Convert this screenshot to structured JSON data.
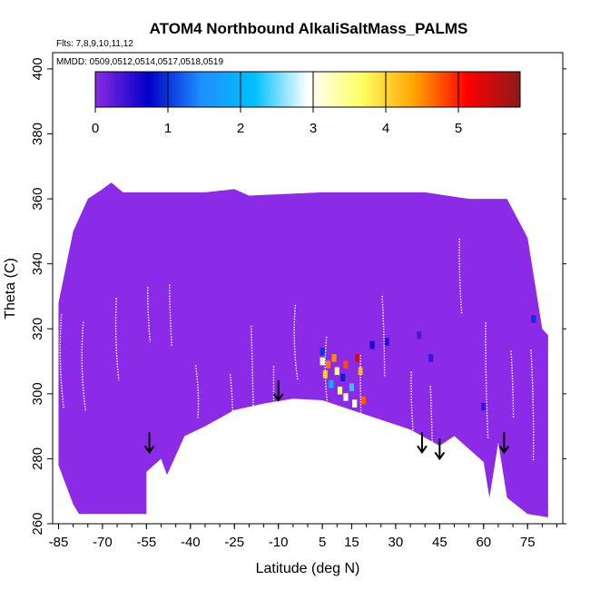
{
  "chart_data": {
    "type": "heatmap",
    "title": "ATOM4 Northbound AlkaliSaltMass_PALMS",
    "subtitle_flights": "Flts: 7,8,9,10,11,12",
    "subtitle_dates": "MMDD: 0509,0512,0514,0517,0518,0519",
    "xlabel": "Latitude (deg N)",
    "ylabel": "Theta (C)",
    "xlim": [
      -87,
      87
    ],
    "ylim": [
      260,
      405
    ],
    "xticks": [
      -85,
      -70,
      -55,
      -40,
      -25,
      -10,
      5,
      15,
      30,
      45,
      60,
      75
    ],
    "yticks": [
      260,
      280,
      300,
      320,
      340,
      360,
      380,
      400
    ],
    "colorbar": {
      "ticks": [
        0,
        1,
        2,
        3,
        4,
        5
      ],
      "range": [
        0,
        5.85
      ],
      "colors": [
        "#8a2be2",
        "#0000c8",
        "#1e90ff",
        "#00bfff",
        "#ffffff",
        "#ffff66",
        "#ffa500",
        "#ff0000",
        "#8b1a1a"
      ]
    },
    "background_value_color": "#8b2be7",
    "curtain_top": [
      [
        -85,
        328
      ],
      [
        -80,
        350
      ],
      [
        -75,
        360
      ],
      [
        -70,
        363
      ],
      [
        -67,
        365
      ],
      [
        -63,
        362
      ],
      [
        -45,
        362
      ],
      [
        -35,
        362
      ],
      [
        -25,
        363
      ],
      [
        -20,
        361
      ],
      [
        5,
        362
      ],
      [
        25,
        362
      ],
      [
        40,
        362
      ],
      [
        55,
        360
      ],
      [
        68,
        360
      ],
      [
        75,
        348
      ],
      [
        80,
        320
      ],
      [
        82,
        318
      ]
    ],
    "curtain_bottom": [
      [
        -85,
        278
      ],
      [
        -80,
        266
      ],
      [
        -78,
        263
      ],
      [
        -55,
        263
      ],
      [
        -55,
        276
      ],
      [
        -50,
        280
      ],
      [
        -48,
        275
      ],
      [
        -42,
        287
      ],
      [
        -35,
        290
      ],
      [
        -25,
        295
      ],
      [
        -15,
        297
      ],
      [
        -5,
        298.5
      ],
      [
        5,
        298
      ],
      [
        15,
        295
      ],
      [
        25,
        292
      ],
      [
        35,
        289
      ],
      [
        45,
        284
      ],
      [
        50,
        287
      ],
      [
        60,
        279
      ],
      [
        62,
        268
      ],
      [
        65,
        285
      ],
      [
        68,
        268
      ],
      [
        75,
        263
      ],
      [
        82,
        262
      ]
    ],
    "high_value_cells": [
      {
        "lat": 5,
        "theta": 313,
        "value": 1.0
      },
      {
        "lat": 5,
        "theta": 310,
        "value": 3.2
      },
      {
        "lat": 6,
        "theta": 306,
        "value": 4.2
      },
      {
        "lat": 7,
        "theta": 309,
        "value": 4.6
      },
      {
        "lat": 8,
        "theta": 303,
        "value": 2.0
      },
      {
        "lat": 9,
        "theta": 311,
        "value": 4.5
      },
      {
        "lat": 10,
        "theta": 307,
        "value": 3.6
      },
      {
        "lat": 11,
        "theta": 301,
        "value": 3.4
      },
      {
        "lat": 12,
        "theta": 305,
        "value": 0.9
      },
      {
        "lat": 13,
        "theta": 309,
        "value": 4.8
      },
      {
        "lat": 13,
        "theta": 299,
        "value": 3.0
      },
      {
        "lat": 15,
        "theta": 302,
        "value": 2.3
      },
      {
        "lat": 16,
        "theta": 297,
        "value": 3.1
      },
      {
        "lat": 17,
        "theta": 311,
        "value": 5.4
      },
      {
        "lat": 18,
        "theta": 307,
        "value": 4.4
      },
      {
        "lat": 19,
        "theta": 298,
        "value": 4.7
      },
      {
        "lat": 22,
        "theta": 315,
        "value": 0.6
      },
      {
        "lat": 27,
        "theta": 316,
        "value": 0.5
      },
      {
        "lat": 38,
        "theta": 318,
        "value": 0.3
      },
      {
        "lat": 42,
        "theta": 311,
        "value": 0.4
      },
      {
        "lat": 60,
        "theta": 296,
        "value": 0.4
      },
      {
        "lat": 77,
        "theta": 323,
        "value": 1.0
      }
    ],
    "arrow_lats": [
      -54,
      -10,
      39,
      45,
      67
    ],
    "arrow_base_thetas": [
      282,
      298,
      282,
      280,
      282
    ]
  }
}
